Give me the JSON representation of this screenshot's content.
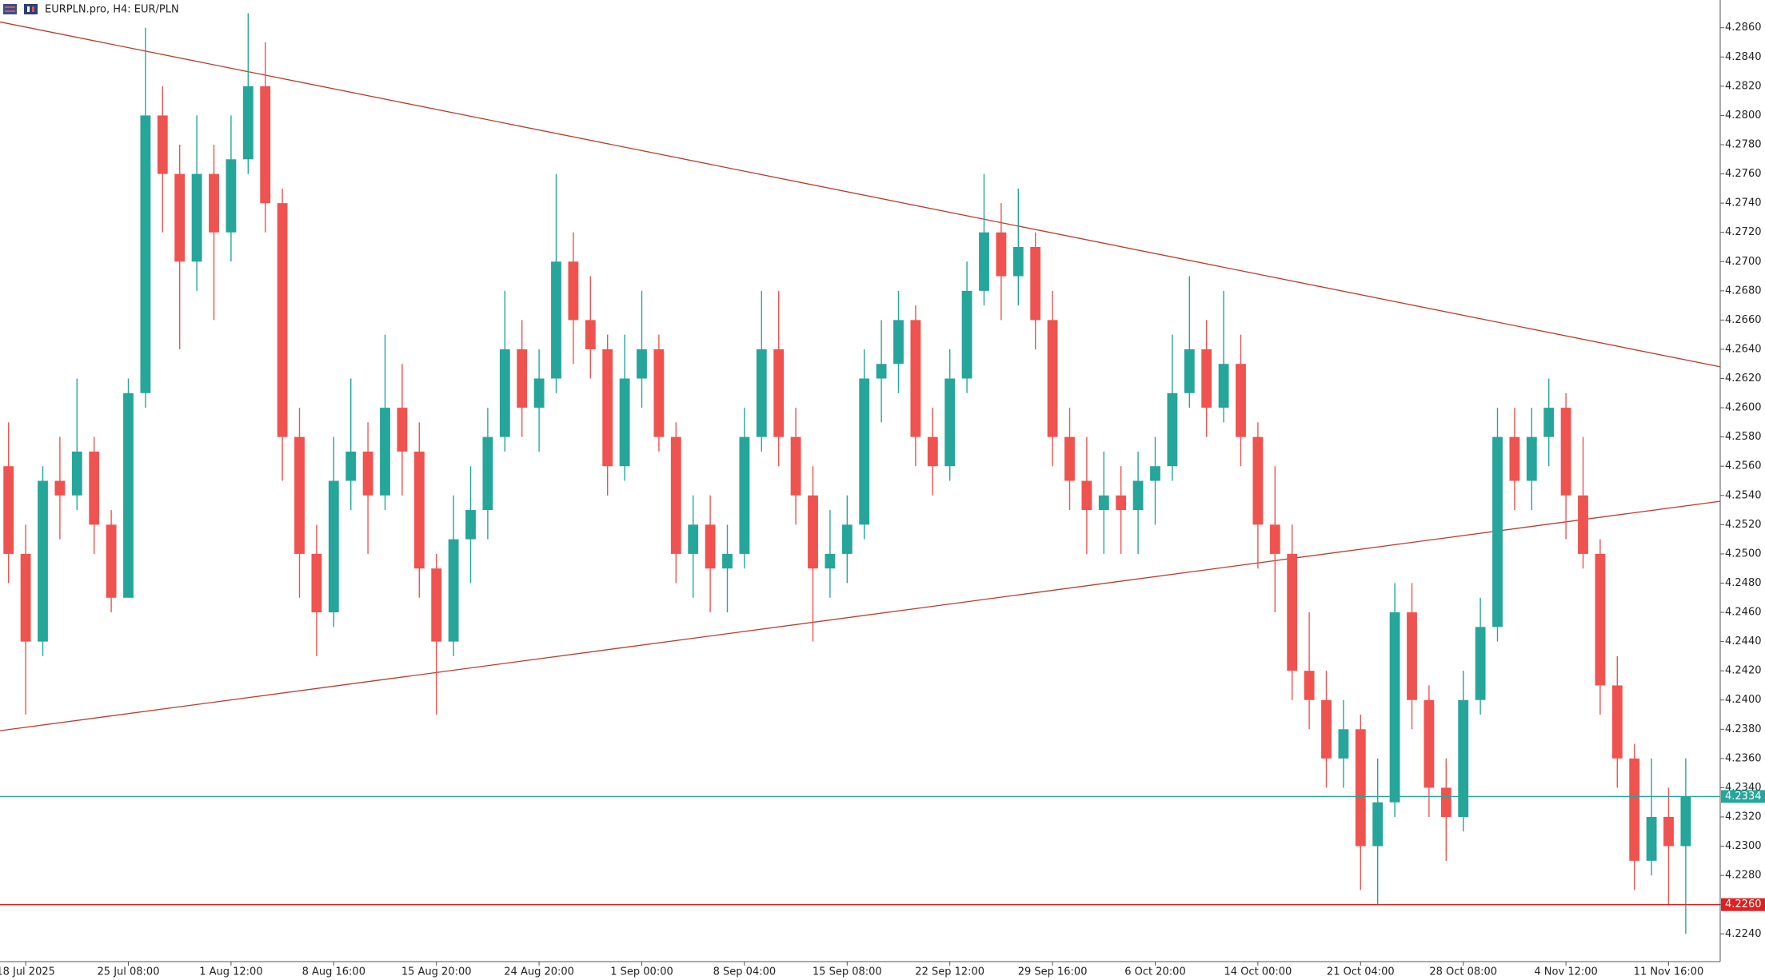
{
  "chart_data": {
    "type": "candlestick",
    "title": "EURPLN.pro, H4:  EUR/PLN",
    "categories": [
      null,
      "18 Jul 2025",
      null,
      null,
      null,
      null,
      null,
      "25 Jul 08:00",
      null,
      null,
      null,
      null,
      null,
      "1 Aug 12:00",
      null,
      null,
      null,
      null,
      null,
      "8 Aug 16:00",
      null,
      null,
      null,
      null,
      null,
      "15 Aug 20:00",
      null,
      null,
      null,
      null,
      null,
      "24 Aug 20:00",
      null,
      null,
      null,
      null,
      null,
      "1 Sep 00:00",
      null,
      null,
      null,
      null,
      null,
      "8 Sep 04:00",
      null,
      null,
      null,
      null,
      null,
      "15 Sep 08:00",
      null,
      null,
      null,
      null,
      null,
      "22 Sep 12:00",
      null,
      null,
      null,
      null,
      null,
      "29 Sep 16:00",
      null,
      null,
      null,
      null,
      null,
      "6 Oct 20:00",
      null,
      null,
      null,
      null,
      null,
      "14 Oct 00:00",
      null,
      null,
      null,
      null,
      null,
      "21 Oct 04:00",
      null,
      null,
      null,
      null,
      null,
      "28 Oct 08:00",
      null,
      null,
      null,
      null,
      null,
      "4 Nov 12:00",
      null,
      null,
      null,
      null,
      null,
      "11 Nov 16:00",
      null
    ],
    "open": [
      4.256,
      4.25,
      4.244,
      4.255,
      4.254,
      4.257,
      4.252,
      4.247,
      4.261,
      4.28,
      4.276,
      4.27,
      4.276,
      4.272,
      4.277,
      4.282,
      4.274,
      4.258,
      4.25,
      4.246,
      4.255,
      4.257,
      4.254,
      4.26,
      4.257,
      4.249,
      4.244,
      4.251,
      4.253,
      4.258,
      4.264,
      4.26,
      4.262,
      4.27,
      4.266,
      4.264,
      4.256,
      4.262,
      4.264,
      4.258,
      4.25,
      4.252,
      4.249,
      4.25,
      4.258,
      4.264,
      4.258,
      4.254,
      4.249,
      4.25,
      4.252,
      4.262,
      4.263,
      4.266,
      4.258,
      4.256,
      4.262,
      4.268,
      4.272,
      4.269,
      4.271,
      4.266,
      4.258,
      4.255,
      4.253,
      4.254,
      4.253,
      4.255,
      4.256,
      4.261,
      4.264,
      4.26,
      4.263,
      4.258,
      4.252,
      4.25,
      4.242,
      4.24,
      4.236,
      4.238,
      4.23,
      4.233,
      4.246,
      4.24,
      4.234,
      4.232,
      4.24,
      4.245,
      4.258,
      4.255,
      4.258,
      4.26,
      4.254,
      4.25,
      4.241,
      4.236,
      4.229,
      4.232,
      4.23
    ],
    "high": [
      4.259,
      4.252,
      4.256,
      4.258,
      4.262,
      4.258,
      4.253,
      4.262,
      4.286,
      4.282,
      4.278,
      4.28,
      4.278,
      4.28,
      4.287,
      4.285,
      4.275,
      4.26,
      4.252,
      4.258,
      4.262,
      4.259,
      4.265,
      4.263,
      4.259,
      4.25,
      4.254,
      4.256,
      4.26,
      4.268,
      4.266,
      4.264,
      4.276,
      4.272,
      4.269,
      4.265,
      4.265,
      4.268,
      4.265,
      4.259,
      4.254,
      4.254,
      4.252,
      4.26,
      4.268,
      4.268,
      4.26,
      4.256,
      4.253,
      4.254,
      4.264,
      4.266,
      4.268,
      4.267,
      4.26,
      4.264,
      4.27,
      4.276,
      4.274,
      4.275,
      4.272,
      4.268,
      4.26,
      4.258,
      4.257,
      4.256,
      4.257,
      4.258,
      4.265,
      4.269,
      4.266,
      4.268,
      4.265,
      4.259,
      4.256,
      4.252,
      4.246,
      4.242,
      4.24,
      4.239,
      4.236,
      4.248,
      4.248,
      4.241,
      4.236,
      4.242,
      4.247,
      4.26,
      4.26,
      4.26,
      4.262,
      4.261,
      4.258,
      4.251,
      4.243,
      4.237,
      4.236,
      4.234,
      4.236
    ],
    "low": [
      4.248,
      4.239,
      4.243,
      4.251,
      4.253,
      4.25,
      4.246,
      4.247,
      4.26,
      4.272,
      4.264,
      4.268,
      4.266,
      4.27,
      4.276,
      4.272,
      4.255,
      4.247,
      4.243,
      4.245,
      4.253,
      4.25,
      4.253,
      4.254,
      4.247,
      4.239,
      4.243,
      4.248,
      4.251,
      4.257,
      4.258,
      4.257,
      4.261,
      4.263,
      4.262,
      4.254,
      4.255,
      4.26,
      4.257,
      4.248,
      4.247,
      4.246,
      4.246,
      4.249,
      4.257,
      4.256,
      4.252,
      4.244,
      4.247,
      4.248,
      4.251,
      4.259,
      4.261,
      4.256,
      4.254,
      4.255,
      4.261,
      4.267,
      4.266,
      4.267,
      4.264,
      4.256,
      4.253,
      4.25,
      4.25,
      4.25,
      4.25,
      4.252,
      4.255,
      4.26,
      4.258,
      4.259,
      4.256,
      4.249,
      4.246,
      4.24,
      4.238,
      4.234,
      4.234,
      4.227,
      4.226,
      4.232,
      4.238,
      4.232,
      4.229,
      4.231,
      4.239,
      4.244,
      4.253,
      4.253,
      4.256,
      4.251,
      4.249,
      4.239,
      4.234,
      4.227,
      4.228,
      4.226,
      4.224
    ],
    "close": [
      4.25,
      4.244,
      4.255,
      4.254,
      4.257,
      4.252,
      4.247,
      4.261,
      4.28,
      4.276,
      4.27,
      4.276,
      4.272,
      4.277,
      4.282,
      4.274,
      4.258,
      4.25,
      4.246,
      4.255,
      4.257,
      4.254,
      4.26,
      4.257,
      4.249,
      4.244,
      4.251,
      4.253,
      4.258,
      4.264,
      4.26,
      4.262,
      4.27,
      4.266,
      4.264,
      4.256,
      4.262,
      4.264,
      4.258,
      4.25,
      4.252,
      4.249,
      4.25,
      4.258,
      4.264,
      4.258,
      4.254,
      4.249,
      4.25,
      4.252,
      4.262,
      4.263,
      4.266,
      4.258,
      4.256,
      4.262,
      4.268,
      4.272,
      4.269,
      4.271,
      4.266,
      4.258,
      4.255,
      4.253,
      4.254,
      4.253,
      4.255,
      4.256,
      4.261,
      4.264,
      4.26,
      4.263,
      4.258,
      4.252,
      4.25,
      4.242,
      4.24,
      4.236,
      4.238,
      4.23,
      4.233,
      4.246,
      4.24,
      4.234,
      4.232,
      4.24,
      4.245,
      4.258,
      4.255,
      4.258,
      4.26,
      4.254,
      4.25,
      4.241,
      4.236,
      4.229,
      4.232,
      4.23,
      4.2334
    ],
    "up_color": "#26a69a",
    "down_color": "#ef5350",
    "ylim": [
      4.2221,
      4.2879
    ],
    "yticks": [
      {
        "value": 4.224,
        "label": "4.2240"
      },
      {
        "value": 4.226,
        "label": "4.2260"
      },
      {
        "value": 4.228,
        "label": "4.2280"
      },
      {
        "value": 4.23,
        "label": "4.2300"
      },
      {
        "value": 4.232,
        "label": "4.2320"
      },
      {
        "value": 4.234,
        "label": "4.2340"
      },
      {
        "value": 4.236,
        "label": "4.2360"
      },
      {
        "value": 4.238,
        "label": "4.2380"
      },
      {
        "value": 4.24,
        "label": "4.2400"
      },
      {
        "value": 4.242,
        "label": "4.2420"
      },
      {
        "value": 4.244,
        "label": "4.2440"
      },
      {
        "value": 4.246,
        "label": "4.2460"
      },
      {
        "value": 4.248,
        "label": "4.2480"
      },
      {
        "value": 4.25,
        "label": "4.2500"
      },
      {
        "value": 4.252,
        "label": "4.2520"
      },
      {
        "value": 4.254,
        "label": "4.2540"
      },
      {
        "value": 4.256,
        "label": "4.2560"
      },
      {
        "value": 4.258,
        "label": "4.2580"
      },
      {
        "value": 4.26,
        "label": "4.2600"
      },
      {
        "value": 4.262,
        "label": "4.2620"
      },
      {
        "value": 4.264,
        "label": "4.2640"
      },
      {
        "value": 4.266,
        "label": "4.2660"
      },
      {
        "value": 4.268,
        "label": "4.2680"
      },
      {
        "value": 4.27,
        "label": "4.2700"
      },
      {
        "value": 4.272,
        "label": "4.2720"
      },
      {
        "value": 4.274,
        "label": "4.2740"
      },
      {
        "value": 4.276,
        "label": "4.2760"
      },
      {
        "value": 4.278,
        "label": "4.2780"
      },
      {
        "value": 4.28,
        "label": "4.2800"
      },
      {
        "value": 4.282,
        "label": "4.2820"
      },
      {
        "value": 4.284,
        "label": "4.2840"
      },
      {
        "value": 4.286,
        "label": "4.2860"
      }
    ],
    "grid": false,
    "trendlines": [
      {
        "start": 4.2864,
        "end": 4.2628,
        "color": "#c0392b"
      },
      {
        "start": 4.2379,
        "end": 4.2536,
        "color": "#c0392b"
      }
    ],
    "price_lines": [
      {
        "value": 4.2334,
        "color": "#26a69a"
      },
      {
        "value": 4.226,
        "label": "4.2260",
        "color": "#e02020"
      }
    ]
  }
}
